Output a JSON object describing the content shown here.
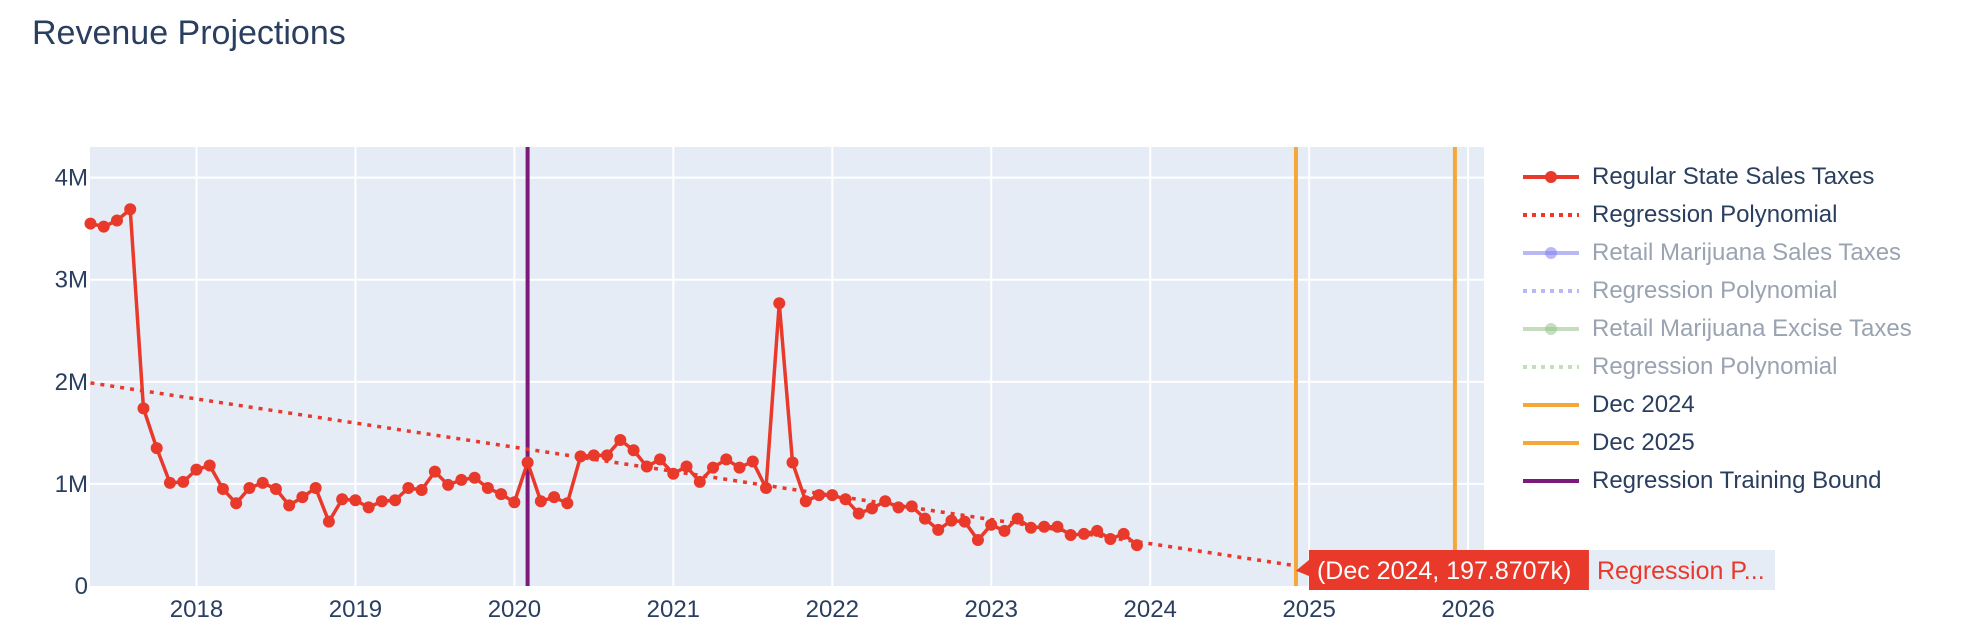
{
  "title": "Revenue Projections",
  "colors": {
    "regular": "#e8392b",
    "retail_sales": "#7f7ff0",
    "retail_excise": "#94c28a",
    "bound_2024": "#f4a83a",
    "bound_2025": "#f4a83a",
    "training_bound": "#7a1a7a",
    "plot_bg": "#e5ecf6"
  },
  "legend": [
    {
      "label": "Regular State Sales Taxes",
      "style": "line-marker",
      "color": "#e8392b",
      "visible": true
    },
    {
      "label": "Regression Polynomial",
      "style": "dotted",
      "color": "#e8392b",
      "visible": true
    },
    {
      "label": "Retail Marijuana Sales Taxes",
      "style": "line-marker",
      "color": "#7f7ff0",
      "visible": false
    },
    {
      "label": "Regression Polynomial",
      "style": "dotted",
      "color": "#7f7ff0",
      "visible": false
    },
    {
      "label": "Retail Marijuana Excise Taxes",
      "style": "line-marker",
      "color": "#94c28a",
      "visible": false
    },
    {
      "label": "Regression Polynomial",
      "style": "dotted",
      "color": "#94c28a",
      "visible": false
    },
    {
      "label": "Dec 2024",
      "style": "solid",
      "color": "#f4a83a",
      "visible": true
    },
    {
      "label": "Dec 2025",
      "style": "solid",
      "color": "#f4a83a",
      "visible": true
    },
    {
      "label": "Regression Training Bound",
      "style": "solid",
      "color": "#7a1a7a",
      "visible": true
    }
  ],
  "tooltip": {
    "value_text": "(Dec 2024, 197.8707k)",
    "series_text": "Regression P...",
    "x": 2024.917,
    "y": 197870.7
  },
  "chart_data": {
    "type": "line",
    "title": "Revenue Projections",
    "xlabel": "",
    "ylabel": "",
    "xlim": [
      2017.33,
      2026.1
    ],
    "ylim": [
      0,
      4300000
    ],
    "x_ticks": [
      2018,
      2019,
      2020,
      2021,
      2022,
      2023,
      2024,
      2025,
      2026
    ],
    "x_tick_labels": [
      "2018",
      "2019",
      "2020",
      "2021",
      "2022",
      "2023",
      "2024",
      "2025",
      "2026"
    ],
    "y_ticks": [
      0,
      1000000,
      2000000,
      3000000,
      4000000
    ],
    "y_tick_labels": [
      "0",
      "1M",
      "2M",
      "3M",
      "4M"
    ],
    "grid": true,
    "legend_position": "right",
    "series": [
      {
        "name": "Regular State Sales Taxes",
        "mode": "lines+markers",
        "start": 2017.333,
        "step_months": 1,
        "values": [
          3550000,
          3520000,
          3580000,
          3690000,
          1740000,
          1350000,
          1010000,
          1020000,
          1140000,
          1180000,
          950000,
          810000,
          960000,
          1010000,
          950000,
          790000,
          870000,
          960000,
          630000,
          850000,
          840000,
          770000,
          830000,
          840000,
          960000,
          940000,
          1120000,
          990000,
          1040000,
          1060000,
          960000,
          900000,
          820000,
          1210000,
          830000,
          870000,
          810000,
          1270000,
          1280000,
          1280000,
          1430000,
          1330000,
          1170000,
          1240000,
          1100000,
          1170000,
          1020000,
          1160000,
          1240000,
          1160000,
          1220000,
          960000,
          2770000,
          1210000,
          830000,
          890000,
          890000,
          850000,
          710000,
          760000,
          830000,
          770000,
          780000,
          660000,
          550000,
          640000,
          630000,
          450000,
          600000,
          540000,
          660000,
          570000,
          580000,
          580000,
          500000,
          510000,
          540000,
          460000,
          510000,
          400000
        ]
      },
      {
        "name": "Regression Polynomial",
        "mode": "dotted line",
        "x": [
          2017.333,
          2024.917
        ],
        "values": [
          1990000,
          197870.7
        ]
      }
    ],
    "vertical_lines": [
      {
        "name": "Regression Training Bound",
        "x": 2020.083
      },
      {
        "name": "Dec 2024",
        "x": 2024.917
      },
      {
        "name": "Dec 2025",
        "x": 2025.917
      }
    ]
  }
}
